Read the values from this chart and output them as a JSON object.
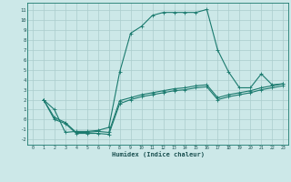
{
  "xlabel": "Humidex (Indice chaleur)",
  "bg_color": "#cce8e8",
  "grid_color": "#aacccc",
  "line_color": "#1a7a6e",
  "xlim": [
    -0.5,
    23.5
  ],
  "ylim": [
    -2.5,
    11.8
  ],
  "xticks": [
    0,
    1,
    2,
    3,
    4,
    5,
    6,
    7,
    8,
    9,
    10,
    11,
    12,
    13,
    14,
    15,
    16,
    17,
    18,
    19,
    20,
    21,
    22,
    23
  ],
  "yticks": [
    -2,
    -1,
    0,
    1,
    2,
    3,
    4,
    5,
    6,
    7,
    8,
    9,
    10,
    11
  ],
  "line1_x": [
    1,
    2,
    3,
    4,
    5,
    6,
    7,
    8,
    9,
    10,
    11,
    12,
    13,
    14,
    15,
    16,
    17,
    18,
    19,
    20,
    21,
    22,
    23
  ],
  "line1_y": [
    2.0,
    1.0,
    -1.3,
    -1.2,
    -1.2,
    -1.1,
    -0.8,
    4.8,
    8.7,
    9.4,
    10.5,
    10.8,
    10.8,
    10.8,
    10.8,
    11.1,
    7.0,
    4.8,
    3.2,
    3.2,
    4.6,
    3.5,
    3.6
  ],
  "line2_x": [
    1,
    2,
    3,
    4,
    5,
    6,
    7,
    8,
    9,
    10,
    11,
    12,
    13,
    14,
    15,
    16,
    17,
    18,
    19,
    20,
    21,
    22,
    23
  ],
  "line2_y": [
    2.0,
    0.2,
    -0.3,
    -1.3,
    -1.3,
    -1.2,
    -1.3,
    1.9,
    2.2,
    2.5,
    2.7,
    2.9,
    3.1,
    3.2,
    3.4,
    3.5,
    2.2,
    2.5,
    2.7,
    2.9,
    3.2,
    3.4,
    3.6
  ],
  "line3_x": [
    1,
    2,
    3,
    4,
    5,
    6,
    7,
    8,
    9,
    10,
    11,
    12,
    13,
    14,
    15,
    16,
    17,
    18,
    19,
    20,
    21,
    22,
    23
  ],
  "line3_y": [
    2.0,
    0.0,
    -0.4,
    -1.4,
    -1.4,
    -1.4,
    -1.5,
    1.6,
    2.0,
    2.3,
    2.5,
    2.7,
    2.9,
    3.0,
    3.2,
    3.3,
    2.0,
    2.3,
    2.5,
    2.7,
    3.0,
    3.2,
    3.4
  ]
}
